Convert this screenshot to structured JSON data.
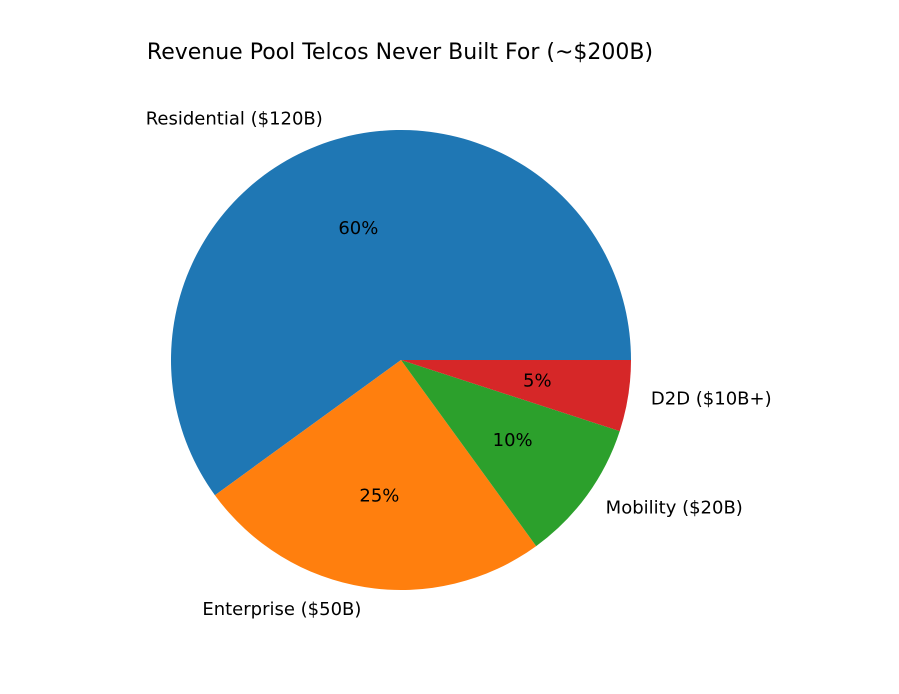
{
  "chart_data": {
    "type": "pie",
    "title": "Revenue Pool Telcos Never Built For (~$200B)",
    "slices": [
      {
        "label": "Residential ($120B)",
        "value": 120,
        "pct_label": "60%",
        "color": "#1f77b4"
      },
      {
        "label": "Enterprise ($50B)",
        "value": 50,
        "pct_label": "25%",
        "color": "#ff7f0e"
      },
      {
        "label": "Mobility ($20B)",
        "value": 20,
        "pct_label": "10%",
        "color": "#2ca02c"
      },
      {
        "label": "D2D ($10B+)",
        "value": 10,
        "pct_label": "5%",
        "color": "#d62728"
      }
    ]
  }
}
